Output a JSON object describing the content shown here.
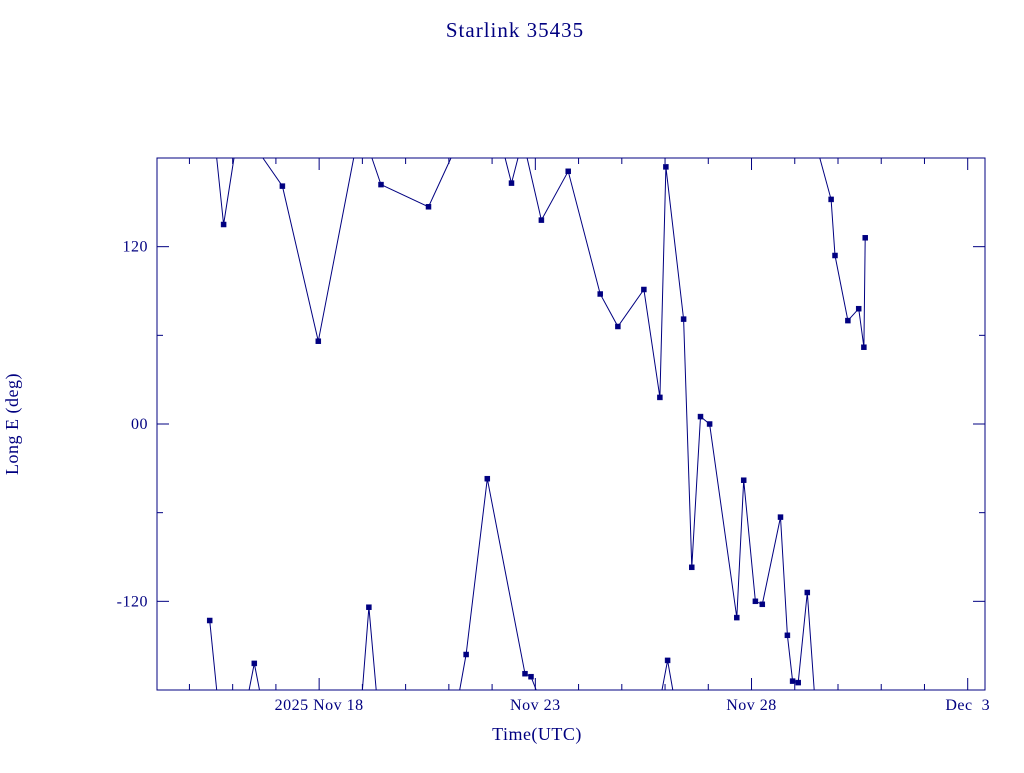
{
  "page": {
    "background": "#ffffff",
    "accent_color": "#000080"
  },
  "chart_data": {
    "type": "line",
    "title": "Starlink 35435",
    "xlabel": "Time(UTC)",
    "ylabel": "Long E (deg)",
    "line_color": "#000080",
    "background": "#ffffff",
    "grid": false,
    "legend": "none",
    "x_unit": "day number, Nov 2025 (33 = Dec 3)",
    "xlim": [
      14.25,
      33.4
    ],
    "ylim": [
      -180,
      180
    ],
    "xticks": [
      {
        "x": 18,
        "label": "2025 Nov 18"
      },
      {
        "x": 23,
        "label": "Nov 23"
      },
      {
        "x": 28,
        "label": "Nov 28"
      },
      {
        "x": 33,
        "label": "Dec  3"
      }
    ],
    "yticks": [
      {
        "y": 120,
        "label": "120"
      },
      {
        "y": 0,
        "label": "00"
      },
      {
        "y": -120,
        "label": "-120"
      }
    ],
    "yminor_step": 60,
    "segments": [
      {
        "points": [
          [
            15.47,
            -133
          ],
          [
            15.63,
            -180
          ]
        ]
      },
      {
        "points": [
          [
            15.63,
            180
          ],
          [
            15.79,
            135
          ],
          [
            16.03,
            180
          ]
        ]
      },
      {
        "points": [
          [
            16.38,
            -180
          ],
          [
            16.5,
            -162
          ],
          [
            16.62,
            -180
          ]
        ]
      },
      {
        "points": [
          [
            16.7,
            180
          ],
          [
            17.15,
            161
          ],
          [
            17.98,
            56
          ],
          [
            18.8,
            180
          ]
        ]
      },
      {
        "points": [
          [
            19.0,
            -180
          ],
          [
            19.15,
            -124
          ],
          [
            19.32,
            -180
          ]
        ]
      },
      {
        "points": [
          [
            19.22,
            180
          ],
          [
            19.43,
            162
          ],
          [
            20.53,
            147
          ],
          [
            21.05,
            180
          ]
        ]
      },
      {
        "points": [
          [
            21.25,
            -180
          ],
          [
            21.4,
            -156
          ],
          [
            21.89,
            -37
          ],
          [
            22.76,
            -169
          ],
          [
            22.9,
            -171
          ],
          [
            23.02,
            -180
          ]
        ]
      },
      {
        "points": [
          [
            22.3,
            180
          ],
          [
            22.45,
            163
          ],
          [
            22.6,
            180
          ]
        ]
      },
      {
        "points": [
          [
            22.81,
            180
          ],
          [
            23.14,
            138
          ],
          [
            23.76,
            171
          ],
          [
            24.5,
            88
          ],
          [
            24.91,
            66
          ],
          [
            25.51,
            91
          ],
          [
            25.88,
            18
          ],
          [
            26.02,
            174
          ],
          [
            26.43,
            71
          ],
          [
            26.62,
            -97
          ],
          [
            26.82,
            5
          ],
          [
            27.03,
            0
          ],
          [
            27.66,
            -131
          ],
          [
            27.82,
            -38
          ],
          [
            28.09,
            -120
          ],
          [
            28.25,
            -122
          ],
          [
            28.67,
            -63
          ],
          [
            28.83,
            -143
          ],
          [
            28.95,
            -174
          ],
          [
            29.08,
            -175
          ],
          [
            29.29,
            -114
          ],
          [
            29.45,
            -180
          ]
        ]
      },
      {
        "points": [
          [
            25.93,
            -180
          ],
          [
            26.06,
            -160
          ],
          [
            26.18,
            -180
          ]
        ]
      },
      {
        "points": [
          [
            29.58,
            180
          ],
          [
            29.84,
            152
          ],
          [
            29.93,
            114
          ],
          [
            30.23,
            70
          ],
          [
            30.48,
            78
          ],
          [
            30.6,
            52
          ],
          [
            30.63,
            126
          ]
        ]
      }
    ],
    "markers": [
      [
        15.47,
        -133
      ],
      [
        15.79,
        135
      ],
      [
        16.5,
        -162
      ],
      [
        17.15,
        161
      ],
      [
        17.98,
        56
      ],
      [
        19.15,
        -124
      ],
      [
        19.43,
        162
      ],
      [
        20.53,
        147
      ],
      [
        21.4,
        -156
      ],
      [
        21.89,
        -37
      ],
      [
        22.45,
        163
      ],
      [
        22.76,
        -169
      ],
      [
        22.9,
        -171
      ],
      [
        23.14,
        138
      ],
      [
        23.76,
        171
      ],
      [
        24.5,
        88
      ],
      [
        24.91,
        66
      ],
      [
        25.51,
        91
      ],
      [
        25.88,
        18
      ],
      [
        26.02,
        174
      ],
      [
        26.06,
        -160
      ],
      [
        26.43,
        71
      ],
      [
        26.62,
        -97
      ],
      [
        26.82,
        5
      ],
      [
        27.03,
        0
      ],
      [
        27.66,
        -131
      ],
      [
        27.82,
        -38
      ],
      [
        28.09,
        -120
      ],
      [
        28.25,
        -122
      ],
      [
        28.67,
        -63
      ],
      [
        28.83,
        -143
      ],
      [
        28.95,
        -174
      ],
      [
        29.08,
        -175
      ],
      [
        29.29,
        -114
      ],
      [
        29.84,
        152
      ],
      [
        29.93,
        114
      ],
      [
        30.23,
        70
      ],
      [
        30.48,
        78
      ],
      [
        30.6,
        52
      ],
      [
        30.63,
        126
      ]
    ]
  }
}
